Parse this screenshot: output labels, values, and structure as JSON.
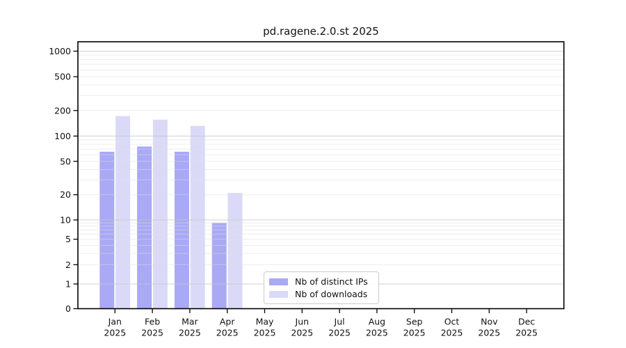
{
  "figure": {
    "title": "pd.ragene.2.0.st 2025"
  },
  "chart_data": {
    "type": "bar",
    "title": "pd.ragene.2.0.st 2025",
    "year": "2025",
    "months": [
      "Jan",
      "Feb",
      "Mar",
      "Apr",
      "May",
      "Jun",
      "Jul",
      "Aug",
      "Sep",
      "Oct",
      "Nov",
      "Dec"
    ],
    "series": [
      {
        "name": "Nb of distinct IPs",
        "color": "#a9a9f6",
        "values": [
          65,
          75,
          65,
          9,
          null,
          null,
          null,
          null,
          null,
          null,
          null,
          null
        ]
      },
      {
        "name": "Nb of downloads",
        "color": "#dadaf8",
        "values": [
          172,
          156,
          132,
          21,
          null,
          null,
          null,
          null,
          null,
          null,
          null,
          null
        ]
      }
    ],
    "yscale": "symlog",
    "yticks": [
      0,
      1,
      2,
      5,
      10,
      20,
      50,
      100,
      200,
      500,
      1000
    ],
    "ylim": [
      0,
      1000
    ],
    "xlabel": "",
    "ylabel": "",
    "grid": "horizontal",
    "legend_position": "lower-center"
  },
  "legend": {
    "items": [
      {
        "label": "Nb of distinct IPs",
        "color": "#a9a9f6"
      },
      {
        "label": "Nb of downloads",
        "color": "#dadaf8"
      }
    ]
  }
}
